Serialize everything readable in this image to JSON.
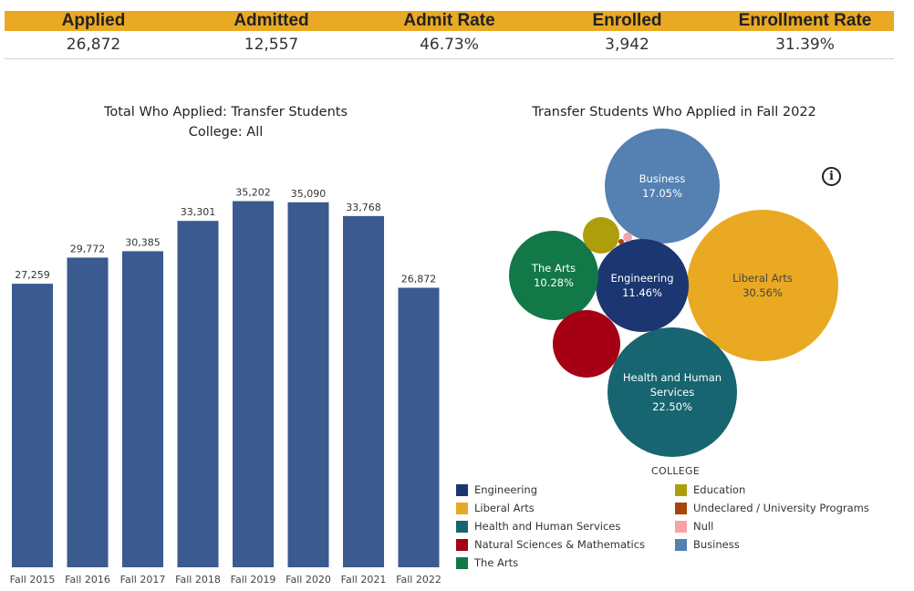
{
  "kpis": [
    {
      "label": "Applied",
      "value": "26,872"
    },
    {
      "label": "Admitted",
      "value": "12,557"
    },
    {
      "label": "Admit Rate",
      "value": "46.73%"
    },
    {
      "label": "Enrolled",
      "value": "3,942"
    },
    {
      "label": "Enrollment Rate",
      "value": "31.39%"
    }
  ],
  "colors": {
    "header_accent": "#e9a923",
    "bar": "#3b5a8f"
  },
  "bubble_legend": {
    "title": "COLLEGE",
    "items": [
      {
        "label": "Engineering",
        "color": "#1c3671"
      },
      {
        "label": "Liberal Arts",
        "color": "#e9a923"
      },
      {
        "label": "Health and Human Services",
        "color": "#176570"
      },
      {
        "label": "Natural Sciences & Mathematics",
        "color": "#a50014"
      },
      {
        "label": "The Arts",
        "color": "#127848"
      },
      {
        "label": "Education",
        "color": "#ad9e0c"
      },
      {
        "label": "Undeclared / University Programs",
        "color": "#a8440c"
      },
      {
        "label": "Null",
        "color": "#f6a2a6"
      },
      {
        "label": "Business",
        "color": "#5480b2"
      }
    ]
  },
  "info_icon": "info-circle-icon",
  "chart_data": [
    {
      "type": "bar",
      "title": "Total Who Applied: Transfer Students",
      "subtitle": "College: All",
      "categories": [
        "Fall 2015",
        "Fall 2016",
        "Fall 2017",
        "Fall 2018",
        "Fall 2019",
        "Fall 2020",
        "Fall 2021",
        "Fall 2022"
      ],
      "values": [
        27259,
        29772,
        30385,
        33301,
        35202,
        35090,
        33768,
        26872
      ],
      "data_labels": [
        "27,259",
        "29,772",
        "30,385",
        "33,301",
        "35,202",
        "35,090",
        "33,768",
        "26,872"
      ],
      "ylim": [
        0,
        37000
      ],
      "grid": false,
      "color": "#3b5a8f"
    },
    {
      "type": "bubble",
      "title": "Transfer Students Who Applied  in Fall 2022",
      "legend_title": "COLLEGE",
      "legend_placement": "bottom",
      "bubbles": [
        {
          "name": "Liberal Arts",
          "value": 30.56,
          "label": "Liberal Arts",
          "value_label": "30.56%",
          "color": "#e9a923"
        },
        {
          "name": "Health and Human Services",
          "value": 22.5,
          "label": "Health and Human Services",
          "value_label": "22.50%",
          "color": "#176570"
        },
        {
          "name": "Business",
          "value": 17.05,
          "label": "Business",
          "value_label": "17.05%",
          "color": "#5480b2"
        },
        {
          "name": "Engineering",
          "value": 11.46,
          "label": "Engineering",
          "value_label": "11.46%",
          "color": "#1c3671"
        },
        {
          "name": "The Arts",
          "value": 10.28,
          "label": "The Arts",
          "value_label": "10.28%",
          "color": "#127848"
        },
        {
          "name": "Natural Sciences & Mathematics",
          "value": 6.6,
          "color": "#a50014"
        },
        {
          "name": "Education",
          "value": 1.5,
          "color": "#ad9e0c"
        },
        {
          "name": "Null",
          "value": 0.1,
          "color": "#f6a2a6"
        },
        {
          "name": "Undeclared / University Programs",
          "value": 0.05,
          "color": "#a8440c"
        }
      ]
    }
  ]
}
